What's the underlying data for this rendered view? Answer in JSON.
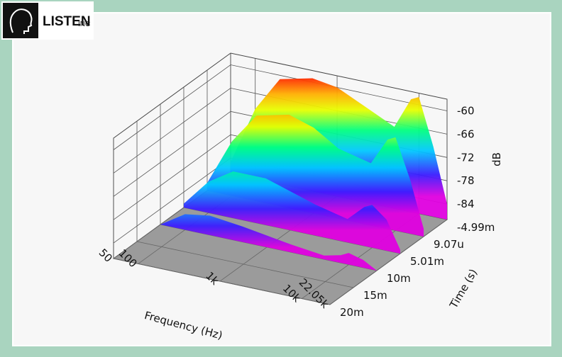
{
  "logo": {
    "text": "LISTEN",
    "suffix": "INC"
  },
  "chart_data": {
    "type": "waterfall3d",
    "xlabel": "Frequency (Hz)",
    "ylabel": "Time (s)",
    "zlabel": "dB",
    "xlog": true,
    "xlim": [
      50,
      22050
    ],
    "xticks": [
      50,
      100,
      {
        "value": 1000,
        "label": "1k"
      },
      {
        "value": 10000,
        "label": "10k"
      },
      {
        "value": 22050,
        "label": "22.05k"
      }
    ],
    "ylim": [
      -0.00499,
      0.02
    ],
    "yticks": [
      {
        "value": -0.00499,
        "label": "-4.99m"
      },
      {
        "value": 9.07e-06,
        "label": "9.07u"
      },
      {
        "value": 0.00501,
        "label": "5.01m"
      },
      {
        "value": 0.01,
        "label": "10m"
      },
      {
        "value": 0.015,
        "label": "15m"
      },
      {
        "value": 0.02,
        "label": "20m"
      }
    ],
    "zlim": [
      -88,
      -57
    ],
    "zticks": [
      -60,
      -66,
      -72,
      -78,
      -84
    ],
    "grid": true,
    "x": [
      50,
      100,
      200,
      500,
      1000,
      2000,
      5000,
      8000,
      10000,
      15000,
      22050
    ],
    "series": [
      {
        "time": -0.00499,
        "values": [
          -85,
          -70,
          -61,
          -59,
          -60,
          -63,
          -67,
          -59,
          -58,
          -70,
          -84
        ]
      },
      {
        "time": 0,
        "values": [
          -86,
          -74,
          -66,
          -64,
          -66,
          -70,
          -72,
          -65,
          -64,
          -74,
          -86
        ]
      },
      {
        "time": 0.005,
        "values": [
          -87,
          -80,
          -76,
          -76,
          -78,
          -80,
          -82,
          -78,
          -77,
          -80,
          -87
        ]
      },
      {
        "time": 0.01,
        "values": [
          -88,
          -84,
          -83,
          -84,
          -85,
          -86,
          -87,
          -86,
          -85,
          -86,
          -88
        ]
      }
    ]
  }
}
